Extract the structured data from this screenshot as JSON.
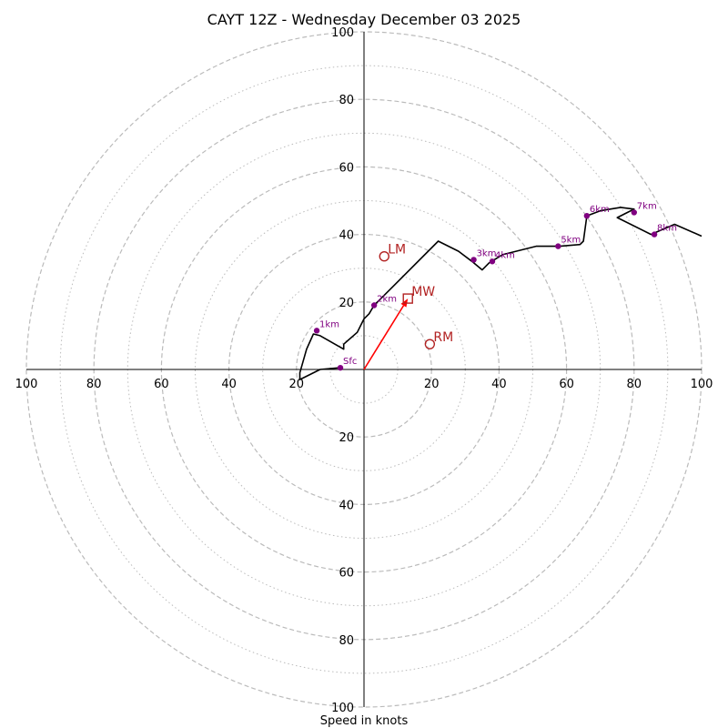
{
  "chart_data": {
    "type": "hodograph",
    "title": "CAYT 12Z - Wednesday December 03 2025",
    "xlabel": "Speed in knots",
    "max_speed": 100,
    "ring_major": [
      20,
      40,
      60,
      80,
      100
    ],
    "ring_minor": [
      10,
      30,
      50,
      70,
      90
    ],
    "tick_labels": {
      "left": [
        "100",
        "80",
        "60",
        "40",
        "20"
      ],
      "right": [
        "20",
        "40",
        "60",
        "80",
        "100"
      ],
      "up": [
        "20",
        "40",
        "60",
        "80",
        "100"
      ],
      "down": [
        "20",
        "40",
        "60",
        "80",
        "100"
      ]
    },
    "trace": {
      "color": "#000000",
      "points": [
        [
          -7,
          0.5
        ],
        [
          -13,
          0
        ],
        [
          -19,
          -3
        ],
        [
          -19,
          -1
        ],
        [
          -17,
          6
        ],
        [
          -15,
          10.5
        ],
        [
          -13,
          10
        ],
        [
          -6,
          6
        ],
        [
          -6,
          7.5
        ],
        [
          -2,
          11
        ],
        [
          0,
          15
        ],
        [
          1.5,
          16.5
        ],
        [
          3,
          19
        ],
        [
          5,
          21
        ],
        [
          9,
          25
        ],
        [
          22,
          38
        ],
        [
          28,
          35
        ],
        [
          32,
          32
        ],
        [
          35,
          29.5
        ],
        [
          37,
          31.5
        ],
        [
          41,
          34
        ],
        [
          51,
          36.5
        ],
        [
          58,
          36.5
        ],
        [
          64,
          37
        ],
        [
          65,
          38
        ],
        [
          66,
          45.5
        ],
        [
          70,
          47
        ],
        [
          76,
          48
        ],
        [
          80,
          47.5
        ],
        [
          78,
          46.5
        ],
        [
          75,
          45
        ],
        [
          85,
          40
        ],
        [
          92,
          43
        ],
        [
          100,
          39.5
        ]
      ]
    },
    "height_markers": [
      {
        "label": "Sfc",
        "u": -7,
        "v": 0.5
      },
      {
        "label": "1km",
        "u": -14,
        "v": 11.5
      },
      {
        "label": "2km",
        "u": 3,
        "v": 19
      },
      {
        "label": "3km",
        "u": 32.5,
        "v": 32.5
      },
      {
        "label": "4km",
        "u": 38,
        "v": 32
      },
      {
        "label": "5km",
        "u": 57.5,
        "v": 36.5
      },
      {
        "label": "6km",
        "u": 66,
        "v": 45.5
      },
      {
        "label": "7km",
        "u": 80,
        "v": 46.5
      },
      {
        "label": "8km",
        "u": 86,
        "v": 40
      }
    ],
    "storm_motion": {
      "LM": {
        "label": "LM",
        "u": 6,
        "v": 33.5
      },
      "RM": {
        "label": "RM",
        "u": 19.5,
        "v": 7.5
      },
      "MW": {
        "label": "MW",
        "u": 13,
        "v": 21
      }
    },
    "colors": {
      "marker": "#800080",
      "motion": "#b22222",
      "arrow": "#ff0000",
      "grid": "#bbbbbb",
      "axis": "#000000"
    }
  }
}
